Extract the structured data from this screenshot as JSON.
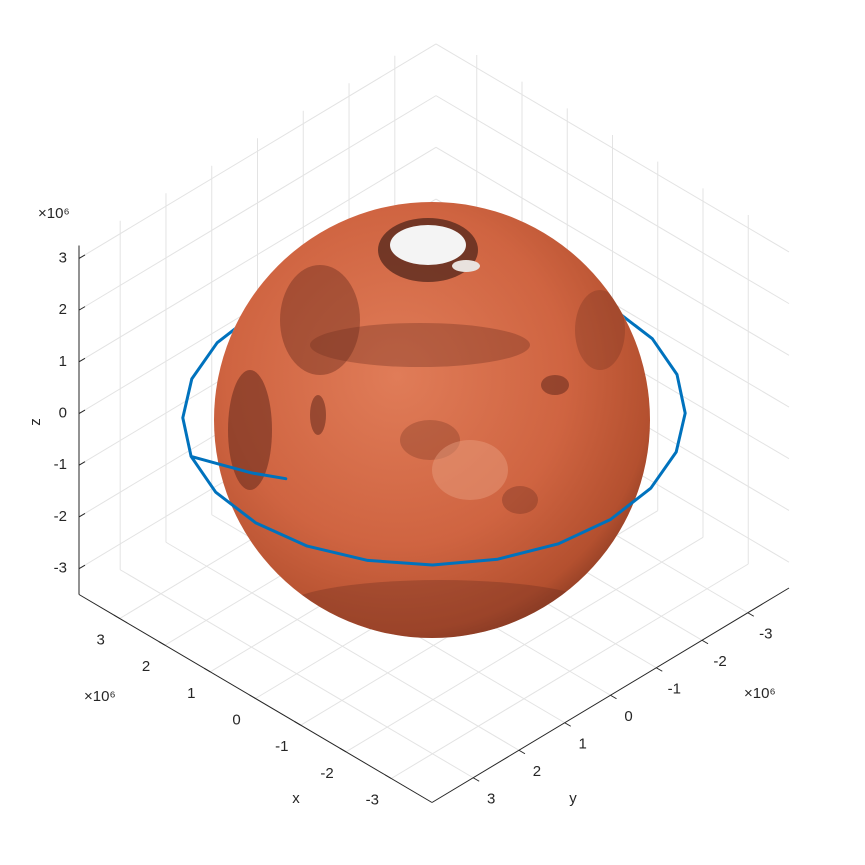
{
  "chart_data": {
    "type": "line3d",
    "xlabel": "x",
    "ylabel": "y",
    "zlabel": "z",
    "x_exponent_label": "×10⁶",
    "y_exponent_label": "×10⁶",
    "z_exponent_label": "×10⁶",
    "xlim": [
      -3.9,
      3.9
    ],
    "ylim": [
      -3.9,
      3.9
    ],
    "zlim": [
      -3.5,
      3.25
    ],
    "xticks": [
      -3,
      -2,
      -1,
      0,
      1,
      2,
      3
    ],
    "yticks": [
      -3,
      -2,
      -1,
      0,
      1,
      2,
      3
    ],
    "zticks": [
      -3,
      -2,
      -1,
      0,
      1,
      2,
      3
    ],
    "grid": true,
    "series": [
      {
        "color": "#0072bd",
        "x": [
          1.95,
          1.01,
          0,
          -1.01,
          -1.95,
          -2.76,
          -3.38,
          -3.77,
          -3.9,
          -3.77,
          -3.38,
          -2.76,
          -1.95,
          -1.01,
          0,
          1.01,
          1.95,
          2.76,
          3.38,
          3.77,
          3.9,
          3.77,
          3.38,
          2.76,
          1.95,
          1.6,
          1.4,
          1.15
        ],
        "y": [
          3.38,
          3.77,
          3.9,
          3.77,
          3.38,
          2.76,
          1.95,
          1.01,
          0,
          -1.01,
          -1.95,
          -2.76,
          -3.38,
          -3.77,
          -3.9,
          -3.77,
          -3.38,
          -2.76,
          -1.95,
          -1.01,
          0,
          1.01,
          1.95,
          2.76,
          3.38,
          3.0,
          2.6,
          2.1
        ],
        "z": [
          -0.1,
          -0.1,
          -0.1,
          -0.1,
          -0.1,
          -0.1,
          -0.1,
          -0.1,
          -0.1,
          -0.1,
          -0.1,
          -0.1,
          -0.1,
          -0.1,
          -0.1,
          -0.1,
          -0.1,
          -0.1,
          -0.1,
          -0.1,
          -0.1,
          -0.1,
          -0.1,
          -0.1,
          -0.1,
          -0.3,
          -0.55,
          -0.8
        ]
      }
    ]
  }
}
